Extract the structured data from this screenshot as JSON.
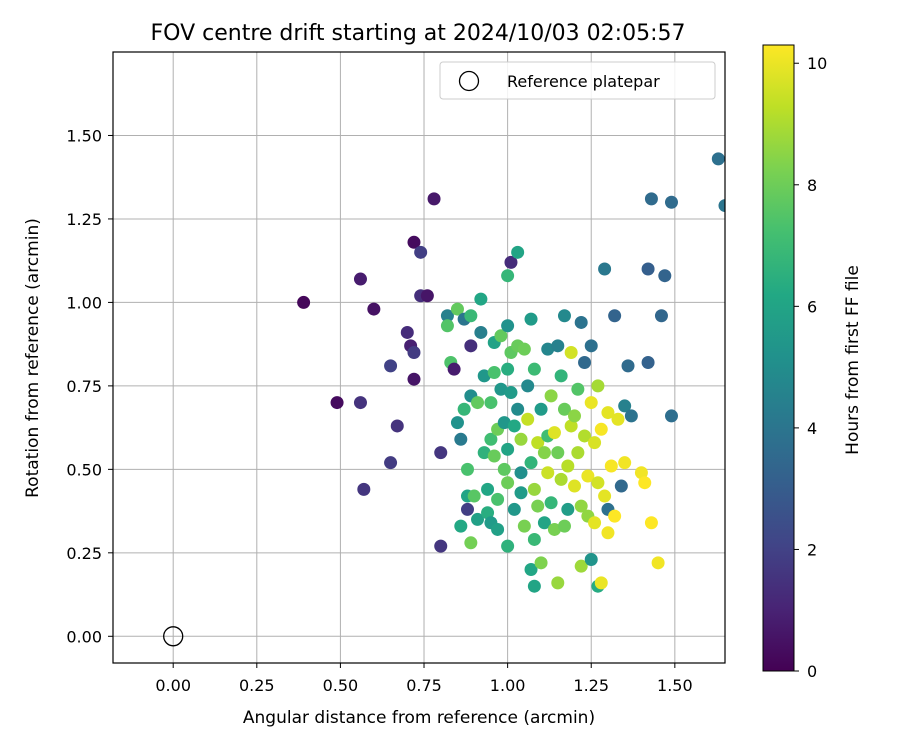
{
  "chart_data": {
    "type": "scatter",
    "title": "FOV centre drift starting at 2024/10/03 02:05:57",
    "xlabel": "Angular distance from reference (arcmin)",
    "ylabel": "Rotation from reference (arcmin)",
    "xlim": [
      -0.18,
      1.65
    ],
    "ylim": [
      -0.08,
      1.75
    ],
    "xticks": [
      "0.00",
      "0.25",
      "0.50",
      "0.75",
      "1.00",
      "1.25",
      "1.50"
    ],
    "yticks": [
      "0.00",
      "0.25",
      "0.50",
      "0.75",
      "1.00",
      "1.25",
      "1.50"
    ],
    "grid": true,
    "legend": {
      "location": "upper right",
      "entries": [
        {
          "label": "Reference platepar",
          "marker": "open-circle"
        }
      ]
    },
    "reference_point": {
      "x": 0.0,
      "y": 0.0
    },
    "colorbar": {
      "label": "Hours from first FF file",
      "min": 0,
      "max": 10.3,
      "ticks": [
        "0",
        "2",
        "4",
        "6",
        "8",
        "10"
      ],
      "colormap": "viridis"
    },
    "series": [
      {
        "points": [
          {
            "x": 0.39,
            "y": 1.0,
            "t": 0.2
          },
          {
            "x": 0.49,
            "y": 0.7,
            "t": 0.3
          },
          {
            "x": 0.56,
            "y": 1.07,
            "t": 0.8
          },
          {
            "x": 0.56,
            "y": 0.7,
            "t": 1.5
          },
          {
            "x": 0.57,
            "y": 0.44,
            "t": 1.6
          },
          {
            "x": 0.6,
            "y": 0.98,
            "t": 0.5
          },
          {
            "x": 0.65,
            "y": 0.52,
            "t": 1.8
          },
          {
            "x": 0.65,
            "y": 0.81,
            "t": 2.0
          },
          {
            "x": 0.67,
            "y": 0.63,
            "t": 1.5
          },
          {
            "x": 0.7,
            "y": 0.91,
            "t": 1.3
          },
          {
            "x": 0.71,
            "y": 0.87,
            "t": 0.9
          },
          {
            "x": 0.72,
            "y": 0.85,
            "t": 1.8
          },
          {
            "x": 0.72,
            "y": 1.18,
            "t": 0.3
          },
          {
            "x": 0.72,
            "y": 0.77,
            "t": 0.6
          },
          {
            "x": 0.74,
            "y": 1.15,
            "t": 1.9
          },
          {
            "x": 0.74,
            "y": 1.02,
            "t": 1.4
          },
          {
            "x": 0.76,
            "y": 1.02,
            "t": 0.6
          },
          {
            "x": 0.78,
            "y": 1.31,
            "t": 0.7
          },
          {
            "x": 0.8,
            "y": 0.55,
            "t": 1.6
          },
          {
            "x": 0.8,
            "y": 0.27,
            "t": 1.6
          },
          {
            "x": 0.82,
            "y": 0.96,
            "t": 4.5
          },
          {
            "x": 0.82,
            "y": 0.93,
            "t": 7.5
          },
          {
            "x": 0.83,
            "y": 0.82,
            "t": 7.4
          },
          {
            "x": 0.84,
            "y": 0.8,
            "t": 0.8
          },
          {
            "x": 0.85,
            "y": 0.98,
            "t": 7.8
          },
          {
            "x": 0.85,
            "y": 0.64,
            "t": 5.2
          },
          {
            "x": 0.86,
            "y": 0.59,
            "t": 4.2
          },
          {
            "x": 0.86,
            "y": 0.33,
            "t": 6.2
          },
          {
            "x": 0.87,
            "y": 0.95,
            "t": 4.0
          },
          {
            "x": 0.87,
            "y": 0.68,
            "t": 6.8
          },
          {
            "x": 0.88,
            "y": 0.38,
            "t": 1.9
          },
          {
            "x": 0.88,
            "y": 0.5,
            "t": 7.3
          },
          {
            "x": 0.88,
            "y": 0.42,
            "t": 6.0
          },
          {
            "x": 0.89,
            "y": 0.96,
            "t": 6.9
          },
          {
            "x": 0.89,
            "y": 0.87,
            "t": 1.4
          },
          {
            "x": 0.89,
            "y": 0.72,
            "t": 5.0
          },
          {
            "x": 0.89,
            "y": 0.28,
            "t": 8.1
          },
          {
            "x": 0.9,
            "y": 0.42,
            "t": 7.6
          },
          {
            "x": 0.91,
            "y": 0.35,
            "t": 5.8
          },
          {
            "x": 0.91,
            "y": 0.7,
            "t": 7.8
          },
          {
            "x": 0.92,
            "y": 1.01,
            "t": 6.1
          },
          {
            "x": 0.92,
            "y": 0.91,
            "t": 4.4
          },
          {
            "x": 0.93,
            "y": 0.78,
            "t": 5.4
          },
          {
            "x": 0.93,
            "y": 0.55,
            "t": 6.6
          },
          {
            "x": 0.94,
            "y": 0.44,
            "t": 6.1
          },
          {
            "x": 0.94,
            "y": 0.37,
            "t": 6.4
          },
          {
            "x": 0.95,
            "y": 0.59,
            "t": 7.1
          },
          {
            "x": 0.95,
            "y": 0.7,
            "t": 7.3
          },
          {
            "x": 0.95,
            "y": 0.34,
            "t": 5.6
          },
          {
            "x": 0.96,
            "y": 0.88,
            "t": 5.9
          },
          {
            "x": 0.96,
            "y": 0.79,
            "t": 7.3
          },
          {
            "x": 0.96,
            "y": 0.54,
            "t": 7.9
          },
          {
            "x": 0.97,
            "y": 0.32,
            "t": 5.8
          },
          {
            "x": 0.97,
            "y": 0.41,
            "t": 7.3
          },
          {
            "x": 0.97,
            "y": 0.62,
            "t": 8.0
          },
          {
            "x": 0.98,
            "y": 0.74,
            "t": 5.4
          },
          {
            "x": 0.98,
            "y": 0.9,
            "t": 7.8
          },
          {
            "x": 0.99,
            "y": 0.64,
            "t": 5.4
          },
          {
            "x": 0.99,
            "y": 0.5,
            "t": 7.7
          },
          {
            "x": 1.0,
            "y": 1.08,
            "t": 6.8
          },
          {
            "x": 1.0,
            "y": 0.93,
            "t": 5.2
          },
          {
            "x": 1.0,
            "y": 0.8,
            "t": 6.4
          },
          {
            "x": 1.0,
            "y": 0.56,
            "t": 6.0
          },
          {
            "x": 1.0,
            "y": 0.46,
            "t": 8.0
          },
          {
            "x": 1.0,
            "y": 0.27,
            "t": 6.6
          },
          {
            "x": 1.01,
            "y": 1.12,
            "t": 1.3
          },
          {
            "x": 1.01,
            "y": 0.85,
            "t": 7.7
          },
          {
            "x": 1.01,
            "y": 0.73,
            "t": 5.6
          },
          {
            "x": 1.02,
            "y": 0.38,
            "t": 5.4
          },
          {
            "x": 1.02,
            "y": 0.63,
            "t": 6.2
          },
          {
            "x": 1.03,
            "y": 1.15,
            "t": 6.0
          },
          {
            "x": 1.03,
            "y": 0.87,
            "t": 7.9
          },
          {
            "x": 1.03,
            "y": 0.68,
            "t": 4.9
          },
          {
            "x": 1.04,
            "y": 0.59,
            "t": 8.7
          },
          {
            "x": 1.04,
            "y": 0.49,
            "t": 5.1
          },
          {
            "x": 1.04,
            "y": 0.43,
            "t": 5.6
          },
          {
            "x": 1.05,
            "y": 0.86,
            "t": 8.0
          },
          {
            "x": 1.05,
            "y": 0.33,
            "t": 8.2
          },
          {
            "x": 1.06,
            "y": 0.75,
            "t": 4.8
          },
          {
            "x": 1.06,
            "y": 0.65,
            "t": 9.4
          },
          {
            "x": 1.07,
            "y": 0.95,
            "t": 5.6
          },
          {
            "x": 1.07,
            "y": 0.52,
            "t": 6.7
          },
          {
            "x": 1.07,
            "y": 0.2,
            "t": 6.1
          },
          {
            "x": 1.08,
            "y": 0.8,
            "t": 7.0
          },
          {
            "x": 1.08,
            "y": 0.44,
            "t": 8.7
          },
          {
            "x": 1.08,
            "y": 0.29,
            "t": 6.9
          },
          {
            "x": 1.08,
            "y": 0.15,
            "t": 6.0
          },
          {
            "x": 1.09,
            "y": 0.58,
            "t": 9.3
          },
          {
            "x": 1.09,
            "y": 0.39,
            "t": 8.2
          },
          {
            "x": 1.1,
            "y": 0.22,
            "t": 8.3
          },
          {
            "x": 1.1,
            "y": 0.68,
            "t": 5.6
          },
          {
            "x": 1.11,
            "y": 0.55,
            "t": 8.4
          },
          {
            "x": 1.11,
            "y": 0.34,
            "t": 6.0
          },
          {
            "x": 1.12,
            "y": 0.86,
            "t": 4.7
          },
          {
            "x": 1.12,
            "y": 0.6,
            "t": 7.1
          },
          {
            "x": 1.12,
            "y": 0.49,
            "t": 9.5
          },
          {
            "x": 1.13,
            "y": 0.72,
            "t": 8.5
          },
          {
            "x": 1.13,
            "y": 0.4,
            "t": 6.8
          },
          {
            "x": 1.14,
            "y": 0.61,
            "t": 9.8
          },
          {
            "x": 1.14,
            "y": 0.32,
            "t": 8.2
          },
          {
            "x": 1.15,
            "y": 0.87,
            "t": 4.5
          },
          {
            "x": 1.15,
            "y": 0.55,
            "t": 8.0
          },
          {
            "x": 1.15,
            "y": 0.16,
            "t": 8.7
          },
          {
            "x": 1.16,
            "y": 0.78,
            "t": 6.7
          },
          {
            "x": 1.16,
            "y": 0.47,
            "t": 9.0
          },
          {
            "x": 1.17,
            "y": 0.96,
            "t": 4.8
          },
          {
            "x": 1.17,
            "y": 0.68,
            "t": 7.9
          },
          {
            "x": 1.17,
            "y": 0.33,
            "t": 8.0
          },
          {
            "x": 1.18,
            "y": 0.51,
            "t": 9.2
          },
          {
            "x": 1.18,
            "y": 0.38,
            "t": 5.7
          },
          {
            "x": 1.19,
            "y": 0.63,
            "t": 9.3
          },
          {
            "x": 1.19,
            "y": 0.85,
            "t": 9.6
          },
          {
            "x": 1.2,
            "y": 0.66,
            "t": 8.5
          },
          {
            "x": 1.2,
            "y": 0.45,
            "t": 9.8
          },
          {
            "x": 1.21,
            "y": 0.74,
            "t": 7.5
          },
          {
            "x": 1.21,
            "y": 0.55,
            "t": 9.0
          },
          {
            "x": 1.22,
            "y": 0.94,
            "t": 3.9
          },
          {
            "x": 1.22,
            "y": 0.39,
            "t": 8.6
          },
          {
            "x": 1.22,
            "y": 0.21,
            "t": 8.8
          },
          {
            "x": 1.23,
            "y": 0.82,
            "t": 3.5
          },
          {
            "x": 1.23,
            "y": 0.6,
            "t": 9.1
          },
          {
            "x": 1.24,
            "y": 0.48,
            "t": 10.0
          },
          {
            "x": 1.24,
            "y": 0.36,
            "t": 8.6
          },
          {
            "x": 1.25,
            "y": 0.87,
            "t": 3.8
          },
          {
            "x": 1.25,
            "y": 0.7,
            "t": 10.0
          },
          {
            "x": 1.25,
            "y": 0.23,
            "t": 5.3
          },
          {
            "x": 1.26,
            "y": 0.58,
            "t": 9.7
          },
          {
            "x": 1.26,
            "y": 0.34,
            "t": 9.9
          },
          {
            "x": 1.27,
            "y": 0.75,
            "t": 8.9
          },
          {
            "x": 1.27,
            "y": 0.46,
            "t": 9.6
          },
          {
            "x": 1.27,
            "y": 0.15,
            "t": 6.3
          },
          {
            "x": 1.28,
            "y": 0.62,
            "t": 10.2
          },
          {
            "x": 1.28,
            "y": 0.16,
            "t": 10.0
          },
          {
            "x": 1.29,
            "y": 1.1,
            "t": 4.1
          },
          {
            "x": 1.29,
            "y": 0.42,
            "t": 9.9
          },
          {
            "x": 1.3,
            "y": 0.67,
            "t": 9.9
          },
          {
            "x": 1.3,
            "y": 0.38,
            "t": 3.8
          },
          {
            "x": 1.3,
            "y": 0.31,
            "t": 10.1
          },
          {
            "x": 1.31,
            "y": 0.51,
            "t": 10.2
          },
          {
            "x": 1.32,
            "y": 0.96,
            "t": 3.3
          },
          {
            "x": 1.32,
            "y": 0.36,
            "t": 10.3
          },
          {
            "x": 1.33,
            "y": 0.65,
            "t": 9.9
          },
          {
            "x": 1.34,
            "y": 0.45,
            "t": 3.5
          },
          {
            "x": 1.35,
            "y": 0.52,
            "t": 10.1
          },
          {
            "x": 1.35,
            "y": 0.69,
            "t": 4.5
          },
          {
            "x": 1.36,
            "y": 0.81,
            "t": 3.6
          },
          {
            "x": 1.37,
            "y": 0.66,
            "t": 3.9
          },
          {
            "x": 1.4,
            "y": 0.49,
            "t": 10.1
          },
          {
            "x": 1.41,
            "y": 0.46,
            "t": 10.3
          },
          {
            "x": 1.42,
            "y": 0.82,
            "t": 3.2
          },
          {
            "x": 1.42,
            "y": 1.1,
            "t": 3.1
          },
          {
            "x": 1.43,
            "y": 1.31,
            "t": 3.6
          },
          {
            "x": 1.43,
            "y": 0.34,
            "t": 10.3
          },
          {
            "x": 1.45,
            "y": 0.22,
            "t": 10.1
          },
          {
            "x": 1.46,
            "y": 0.96,
            "t": 3.4
          },
          {
            "x": 1.47,
            "y": 1.08,
            "t": 3.3
          },
          {
            "x": 1.49,
            "y": 1.3,
            "t": 3.6
          },
          {
            "x": 1.49,
            "y": 0.66,
            "t": 3.7
          },
          {
            "x": 1.63,
            "y": 1.43,
            "t": 3.8
          },
          {
            "x": 1.65,
            "y": 1.29,
            "t": 4.0
          }
        ]
      }
    ]
  }
}
